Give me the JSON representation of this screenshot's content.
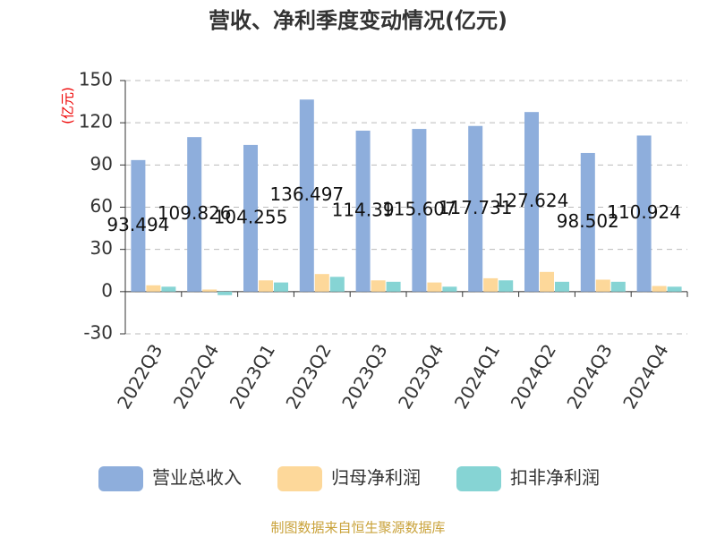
{
  "chart_data": {
    "type": "bar",
    "title": "营收、净利季度变动情况(亿元)",
    "y_label": "(亿元)",
    "source": "制图数据来自恒生聚源数据库",
    "categories": [
      "2022Q3",
      "2022Q4",
      "2023Q1",
      "2023Q2",
      "2023Q3",
      "2023Q4",
      "2024Q1",
      "2024Q2",
      "2024Q3",
      "2024Q4"
    ],
    "series": [
      {
        "name": "营业总收入",
        "color": "#8eaedc",
        "values": [
          93.494,
          109.826,
          104.255,
          136.497,
          114.39,
          115.607,
          117.731,
          127.624,
          98.502,
          110.924
        ],
        "show_labels": true
      },
      {
        "name": "归母净利润",
        "color": "#fdd89a",
        "values": [
          4.5,
          1.5,
          8,
          12.5,
          8,
          6.5,
          9.5,
          14,
          8.5,
          4
        ]
      },
      {
        "name": "扣非净利润",
        "color": "#86d4d4",
        "values": [
          3.5,
          -2.5,
          6.5,
          10.5,
          7,
          3.5,
          8,
          7,
          7,
          3.5
        ]
      }
    ],
    "ylim": [
      -30,
      150
    ],
    "yticks": [
      -30,
      0,
      30,
      60,
      90,
      120,
      150
    ],
    "grid": true,
    "legend": "bottom"
  }
}
